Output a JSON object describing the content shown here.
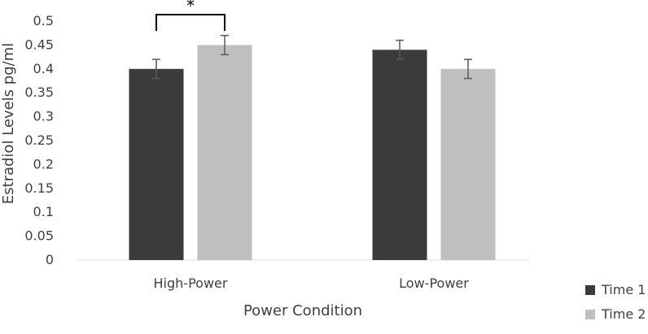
{
  "chart_data": {
    "type": "bar",
    "title": "",
    "xlabel": "Power Condition",
    "ylabel": "Estradiol Levels pg/ml",
    "categories": [
      "High-Power",
      "Low-Power"
    ],
    "series": [
      {
        "name": "Time 1",
        "values": [
          0.4,
          0.44
        ],
        "errors": [
          0.02,
          0.02
        ]
      },
      {
        "name": "Time 2",
        "values": [
          0.45,
          0.4
        ],
        "errors": [
          0.02,
          0.02
        ]
      }
    ],
    "ylim": [
      0,
      0.5
    ],
    "yticks": [
      0,
      0.05,
      0.1,
      0.15,
      0.2,
      0.25,
      0.3,
      0.35,
      0.4,
      0.45,
      0.5
    ],
    "ytick_labels": [
      "0",
      "0.05",
      "0.1",
      "0.15",
      "0.2",
      "0.25",
      "0.3",
      "0.35",
      "0.4",
      "0.45",
      "0.5"
    ],
    "grid": false,
    "legend_position": "bottom-right",
    "significance": {
      "category": "High-Power",
      "label": "*"
    }
  },
  "colors": {
    "time1": "#3b3b3b",
    "time2": "#bfbfbf",
    "errorbar": "#595959",
    "axis": "#d9d9d9",
    "text": "#404040"
  }
}
